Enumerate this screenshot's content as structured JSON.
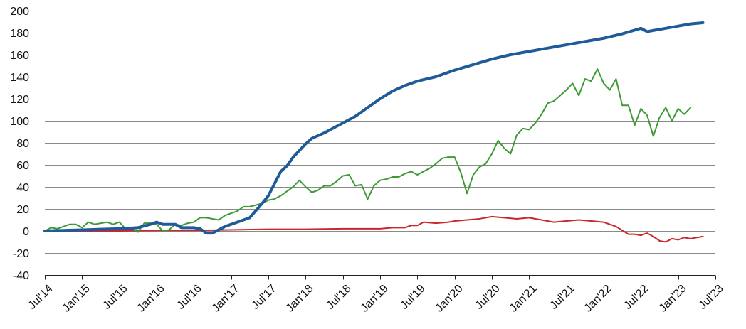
{
  "chart_data": {
    "type": "line",
    "title": "",
    "xlabel": "",
    "ylabel": "",
    "grid": true,
    "legend": "none",
    "x_range": [
      "2014-07",
      "2023-07"
    ],
    "ylim": [
      -40,
      200
    ],
    "y_ticks": [
      -40,
      -20,
      0,
      20,
      40,
      60,
      80,
      100,
      120,
      140,
      160,
      180,
      200
    ],
    "y_tick_labels": [
      "-40",
      "-20",
      "0",
      "20",
      "40",
      "60",
      "80",
      "100",
      "120",
      "140",
      "160",
      "180",
      "200"
    ],
    "x_ticks": [
      "2014-07",
      "2015-01",
      "2015-07",
      "2016-01",
      "2016-07",
      "2017-01",
      "2017-07",
      "2018-01",
      "2018-07",
      "2019-01",
      "2019-07",
      "2020-01",
      "2020-07",
      "2021-01",
      "2021-07",
      "2022-01",
      "2022-07",
      "2023-01",
      "2023-07"
    ],
    "x_tick_labels": [
      "Jul'14",
      "Jan'15",
      "Jul'15",
      "Jan'16",
      "Jul'16",
      "Jan'17",
      "Jul'17",
      "Jan'18",
      "Jul'18",
      "Jan'19",
      "Jul'19",
      "Jan'20",
      "Jul'20",
      "Jan'21",
      "Jul'21",
      "Jan'22",
      "Jul'22",
      "Jan'23",
      "Jul'23"
    ],
    "series": [
      {
        "color": "#1f5b99",
        "stroke_width": 4,
        "points": [
          [
            "2014-07",
            0
          ],
          [
            "2014-10",
            0.5
          ],
          [
            "2015-01",
            1
          ],
          [
            "2015-04",
            1.5
          ],
          [
            "2015-07",
            2
          ],
          [
            "2015-10",
            3
          ],
          [
            "2015-12",
            6
          ],
          [
            "2016-01",
            8
          ],
          [
            "2016-02",
            6
          ],
          [
            "2016-04",
            6
          ],
          [
            "2016-05",
            3
          ],
          [
            "2016-07",
            3
          ],
          [
            "2016-08",
            2
          ],
          [
            "2016-09",
            -2
          ],
          [
            "2016-10",
            -2
          ],
          [
            "2016-11",
            1
          ],
          [
            "2016-12",
            4
          ],
          [
            "2017-02",
            8
          ],
          [
            "2017-04",
            12
          ],
          [
            "2017-06",
            25
          ],
          [
            "2017-07",
            32
          ],
          [
            "2017-08",
            43
          ],
          [
            "2017-09",
            54
          ],
          [
            "2017-10",
            59
          ],
          [
            "2017-11",
            67
          ],
          [
            "2018-01",
            79
          ],
          [
            "2018-02",
            84
          ],
          [
            "2018-04",
            89
          ],
          [
            "2018-05",
            92
          ],
          [
            "2018-06",
            95
          ],
          [
            "2018-07",
            98
          ],
          [
            "2018-09",
            104
          ],
          [
            "2018-11",
            112
          ],
          [
            "2019-01",
            120
          ],
          [
            "2019-03",
            127
          ],
          [
            "2019-05",
            132
          ],
          [
            "2019-07",
            136
          ],
          [
            "2019-10",
            140
          ],
          [
            "2020-01",
            146
          ],
          [
            "2020-04",
            151
          ],
          [
            "2020-07",
            156
          ],
          [
            "2020-10",
            160
          ],
          [
            "2021-01",
            163
          ],
          [
            "2021-04",
            166
          ],
          [
            "2021-07",
            169
          ],
          [
            "2021-10",
            172
          ],
          [
            "2022-01",
            175
          ],
          [
            "2022-04",
            179
          ],
          [
            "2022-07",
            184
          ],
          [
            "2022-08",
            181
          ],
          [
            "2022-09",
            182
          ],
          [
            "2022-11",
            184
          ],
          [
            "2023-01",
            186
          ],
          [
            "2023-03",
            188
          ],
          [
            "2023-05",
            189
          ]
        ]
      },
      {
        "color": "#3d9a34",
        "stroke_width": 2,
        "points": [
          [
            "2014-07",
            0
          ],
          [
            "2014-08",
            3
          ],
          [
            "2014-09",
            2
          ],
          [
            "2014-11",
            6
          ],
          [
            "2014-12",
            6
          ],
          [
            "2015-01",
            3
          ],
          [
            "2015-02",
            8
          ],
          [
            "2015-03",
            6
          ],
          [
            "2015-05",
            8
          ],
          [
            "2015-06",
            6
          ],
          [
            "2015-07",
            8
          ],
          [
            "2015-08",
            2
          ],
          [
            "2015-09",
            2
          ],
          [
            "2015-10",
            -1
          ],
          [
            "2015-11",
            7
          ],
          [
            "2015-12",
            7
          ],
          [
            "2016-01",
            6
          ],
          [
            "2016-02",
            0
          ],
          [
            "2016-03",
            1
          ],
          [
            "2016-04",
            6
          ],
          [
            "2016-05",
            5
          ],
          [
            "2016-06",
            7
          ],
          [
            "2016-07",
            8
          ],
          [
            "2016-08",
            12
          ],
          [
            "2016-09",
            12
          ],
          [
            "2016-10",
            11
          ],
          [
            "2016-11",
            10
          ],
          [
            "2016-12",
            14
          ],
          [
            "2017-01",
            16
          ],
          [
            "2017-02",
            18
          ],
          [
            "2017-03",
            22
          ],
          [
            "2017-04",
            22
          ],
          [
            "2017-06",
            25
          ],
          [
            "2017-07",
            28
          ],
          [
            "2017-08",
            29
          ],
          [
            "2017-09",
            32
          ],
          [
            "2017-10",
            36
          ],
          [
            "2017-11",
            40
          ],
          [
            "2017-12",
            46
          ],
          [
            "2018-01",
            40
          ],
          [
            "2018-02",
            35
          ],
          [
            "2018-03",
            37
          ],
          [
            "2018-04",
            41
          ],
          [
            "2018-05",
            41
          ],
          [
            "2018-06",
            45
          ],
          [
            "2018-07",
            50
          ],
          [
            "2018-08",
            51
          ],
          [
            "2018-09",
            41
          ],
          [
            "2018-10",
            42
          ],
          [
            "2018-11",
            29
          ],
          [
            "2018-12",
            41
          ],
          [
            "2019-01",
            46
          ],
          [
            "2019-02",
            47
          ],
          [
            "2019-03",
            49
          ],
          [
            "2019-04",
            49
          ],
          [
            "2019-05",
            52
          ],
          [
            "2019-06",
            54
          ],
          [
            "2019-07",
            51
          ],
          [
            "2019-08",
            54
          ],
          [
            "2019-09",
            57
          ],
          [
            "2019-10",
            61
          ],
          [
            "2019-11",
            66
          ],
          [
            "2019-12",
            67
          ],
          [
            "2020-01",
            67
          ],
          [
            "2020-02",
            53
          ],
          [
            "2020-03",
            34
          ],
          [
            "2020-04",
            51
          ],
          [
            "2020-05",
            58
          ],
          [
            "2020-06",
            61
          ],
          [
            "2020-07",
            70
          ],
          [
            "2020-08",
            82
          ],
          [
            "2020-09",
            75
          ],
          [
            "2020-10",
            70
          ],
          [
            "2020-11",
            87
          ],
          [
            "2020-12",
            93
          ],
          [
            "2021-01",
            92
          ],
          [
            "2021-02",
            98
          ],
          [
            "2021-03",
            106
          ],
          [
            "2021-04",
            116
          ],
          [
            "2021-05",
            118
          ],
          [
            "2021-06",
            123
          ],
          [
            "2021-07",
            128
          ],
          [
            "2021-08",
            134
          ],
          [
            "2021-09",
            123
          ],
          [
            "2021-10",
            138
          ],
          [
            "2021-11",
            136
          ],
          [
            "2021-12",
            147
          ],
          [
            "2022-01",
            134
          ],
          [
            "2022-02",
            128
          ],
          [
            "2022-03",
            138
          ],
          [
            "2022-04",
            114
          ],
          [
            "2022-05",
            114
          ],
          [
            "2022-06",
            96
          ],
          [
            "2022-07",
            111
          ],
          [
            "2022-08",
            105
          ],
          [
            "2022-09",
            86
          ],
          [
            "2022-10",
            103
          ],
          [
            "2022-11",
            112
          ],
          [
            "2022-12",
            100
          ],
          [
            "2023-01",
            111
          ],
          [
            "2023-02",
            106
          ],
          [
            "2023-03",
            112
          ]
        ]
      },
      {
        "color": "#c8282d",
        "stroke_width": 2,
        "points": [
          [
            "2014-07",
            0
          ],
          [
            "2015-01",
            0
          ],
          [
            "2015-07",
            0
          ],
          [
            "2016-01",
            0.5
          ],
          [
            "2016-07",
            0.5
          ],
          [
            "2017-01",
            1
          ],
          [
            "2017-07",
            1.5
          ],
          [
            "2018-01",
            1.5
          ],
          [
            "2018-07",
            2
          ],
          [
            "2019-01",
            2
          ],
          [
            "2019-03",
            3
          ],
          [
            "2019-05",
            3
          ],
          [
            "2019-06",
            5
          ],
          [
            "2019-07",
            5
          ],
          [
            "2019-08",
            8
          ],
          [
            "2019-10",
            7
          ],
          [
            "2019-12",
            8
          ],
          [
            "2020-01",
            9
          ],
          [
            "2020-03",
            10
          ],
          [
            "2020-05",
            11
          ],
          [
            "2020-07",
            13
          ],
          [
            "2020-09",
            12
          ],
          [
            "2020-11",
            11
          ],
          [
            "2021-01",
            12
          ],
          [
            "2021-03",
            10
          ],
          [
            "2021-05",
            8
          ],
          [
            "2021-07",
            9
          ],
          [
            "2021-09",
            10
          ],
          [
            "2021-11",
            9
          ],
          [
            "2022-01",
            8
          ],
          [
            "2022-03",
            4
          ],
          [
            "2022-05",
            -3
          ],
          [
            "2022-06",
            -3
          ],
          [
            "2022-07",
            -4
          ],
          [
            "2022-08",
            -2
          ],
          [
            "2022-09",
            -5
          ],
          [
            "2022-10",
            -9
          ],
          [
            "2022-11",
            -10
          ],
          [
            "2022-12",
            -7
          ],
          [
            "2023-01",
            -8
          ],
          [
            "2023-02",
            -6
          ],
          [
            "2023-03",
            -7
          ],
          [
            "2023-04",
            -6
          ],
          [
            "2023-05",
            -5
          ]
        ]
      }
    ]
  }
}
